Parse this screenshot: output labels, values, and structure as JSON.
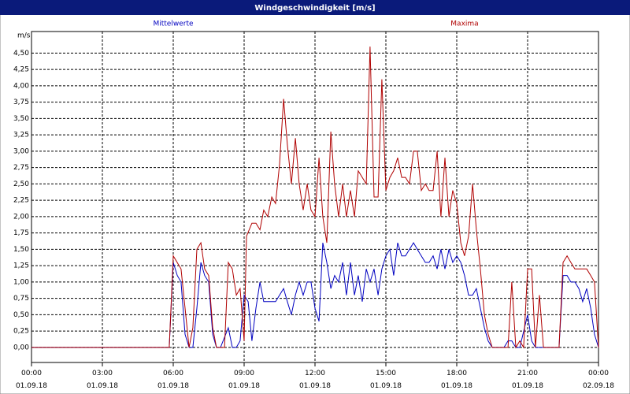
{
  "chart_data": {
    "type": "line",
    "title": "Windgeschwindigkeit [m/s]",
    "y_label": "m/s",
    "xlim": [
      0,
      24
    ],
    "ylim": [
      -0.23,
      4.83
    ],
    "grid": true,
    "xticks": [
      {
        "value": 0,
        "label": "00:00 01.09.18"
      },
      {
        "value": 3,
        "label": "03:00 01.09.18"
      },
      {
        "value": 6,
        "label": "06:00 01.09.18"
      },
      {
        "value": 9,
        "label": "09:00 01.09.18"
      },
      {
        "value": 12,
        "label": "12:00 01.09.18"
      },
      {
        "value": 15,
        "label": "15:00 01.09.18"
      },
      {
        "value": 18,
        "label": "18:00 01.09.18"
      },
      {
        "value": 21,
        "label": "21:00 01.09.18"
      },
      {
        "value": 24,
        "label": "00:00 02.09.18"
      }
    ],
    "yticks": [
      {
        "value": 0,
        "label": "0,00"
      },
      {
        "value": 0.25,
        "label": "0,25"
      },
      {
        "value": 0.5,
        "label": "0,50"
      },
      {
        "value": 0.75,
        "label": "0,75"
      },
      {
        "value": 1,
        "label": "1,00"
      },
      {
        "value": 1.25,
        "label": "1,25"
      },
      {
        "value": 1.5,
        "label": "1,50"
      },
      {
        "value": 1.75,
        "label": "1,75"
      },
      {
        "value": 2,
        "label": "2,00"
      },
      {
        "value": 2.25,
        "label": "2,25"
      },
      {
        "value": 2.5,
        "label": "2,50"
      },
      {
        "value": 2.75,
        "label": "2,75"
      },
      {
        "value": 3,
        "label": "3,00"
      },
      {
        "value": 3.25,
        "label": "3,25"
      },
      {
        "value": 3.5,
        "label": "3,50"
      },
      {
        "value": 3.75,
        "label": "3,75"
      },
      {
        "value": 4,
        "label": "4,00"
      },
      {
        "value": 4.25,
        "label": "4,25"
      },
      {
        "value": 4.5,
        "label": "4,50"
      }
    ],
    "series": [
      {
        "name": "Mittelwerte",
        "color": "#0000c0",
        "x": [
          0,
          5.83,
          6,
          6.17,
          6.33,
          6.5,
          6.67,
          6.83,
          7,
          7.17,
          7.33,
          7.5,
          7.67,
          7.83,
          8,
          8.33,
          8.5,
          8.67,
          8.83,
          9,
          9.17,
          9.33,
          9.5,
          9.67,
          9.83,
          10,
          10.33,
          10.5,
          10.67,
          10.83,
          11,
          11.17,
          11.33,
          11.5,
          11.67,
          11.83,
          12,
          12.17,
          12.33,
          12.5,
          12.67,
          12.83,
          13,
          13.17,
          13.33,
          13.5,
          13.67,
          13.83,
          14,
          14.17,
          14.33,
          14.5,
          14.67,
          14.83,
          15,
          15.17,
          15.33,
          15.5,
          15.67,
          15.83,
          16,
          16.17,
          16.33,
          16.5,
          16.67,
          16.83,
          17,
          17.17,
          17.33,
          17.5,
          17.67,
          17.83,
          18,
          18.17,
          18.33,
          18.5,
          18.67,
          18.83,
          19,
          19.17,
          19.33,
          19.5,
          20,
          20.17,
          20.33,
          20.5,
          20.67,
          21,
          21.17,
          21.33,
          22,
          22.33,
          22.5,
          22.67,
          22.83,
          23,
          23.17,
          23.33,
          23.5,
          23.67,
          23.83,
          24
        ],
        "values": [
          0,
          0,
          1.3,
          1.1,
          1,
          0.2,
          0,
          0,
          0.6,
          1.3,
          1.1,
          1,
          0.2,
          0,
          0,
          0.3,
          0,
          0,
          0.1,
          0.8,
          0.7,
          0.1,
          0.6,
          1,
          0.7,
          0.7,
          0.7,
          0.8,
          0.9,
          0.7,
          0.5,
          0.8,
          1,
          0.8,
          1,
          1,
          0.6,
          0.4,
          1.6,
          1.3,
          0.9,
          1.1,
          1,
          1.3,
          0.8,
          1.3,
          0.8,
          1.1,
          0.7,
          1.2,
          1,
          1.2,
          0.8,
          1.2,
          1.4,
          1.5,
          1.1,
          1.6,
          1.4,
          1.4,
          1.5,
          1.6,
          1.5,
          1.4,
          1.3,
          1.3,
          1.4,
          1.2,
          1.5,
          1.2,
          1.5,
          1.3,
          1.4,
          1.3,
          1.1,
          0.8,
          0.8,
          0.9,
          0.6,
          0.3,
          0.1,
          0,
          0,
          0.1,
          0.1,
          0,
          0,
          0.5,
          0.1,
          0,
          0,
          0,
          1.1,
          1.1,
          1,
          1,
          0.9,
          0.7,
          0.9,
          0.6,
          0.2,
          0
        ]
      },
      {
        "name": "Maxima",
        "color": "#b00000",
        "x": [
          0,
          5.83,
          6,
          6.33,
          6.5,
          6.67,
          6.83,
          7,
          7.17,
          7.33,
          7.5,
          7.67,
          7.83,
          8,
          8.17,
          8.33,
          8.5,
          8.67,
          8.83,
          9,
          9.1,
          9.33,
          9.5,
          9.67,
          9.83,
          10,
          10.17,
          10.33,
          10.5,
          10.67,
          10.83,
          11,
          11.17,
          11.33,
          11.5,
          11.67,
          11.83,
          12,
          12.17,
          12.33,
          12.5,
          12.67,
          12.83,
          13,
          13.17,
          13.33,
          13.5,
          13.67,
          13.83,
          14,
          14.17,
          14.33,
          14.5,
          14.67,
          14.83,
          15,
          15.17,
          15.33,
          15.5,
          15.67,
          15.83,
          16,
          16.17,
          16.33,
          16.5,
          16.67,
          16.83,
          17,
          17.17,
          17.33,
          17.5,
          17.67,
          17.83,
          18,
          18.17,
          18.33,
          18.5,
          18.67,
          18.83,
          19,
          19.17,
          19.33,
          19.5,
          20,
          20.17,
          20.33,
          20.5,
          20.67,
          20.83,
          21,
          21.17,
          21.33,
          21.5,
          21.67,
          22,
          22.33,
          22.5,
          22.67,
          22.83,
          23,
          23.33,
          23.5,
          23.67,
          23.83,
          24
        ],
        "values": [
          0,
          0,
          1.4,
          1.2,
          0.6,
          0,
          0.3,
          1.5,
          1.6,
          1.2,
          1.1,
          0.3,
          0,
          0,
          0,
          1.3,
          1.2,
          0.8,
          0.9,
          0.1,
          1.7,
          1.9,
          1.9,
          1.8,
          2.1,
          2,
          2.3,
          2.2,
          2.8,
          3.8,
          3.1,
          2.5,
          3.2,
          2.5,
          2.1,
          2.5,
          2.1,
          2,
          2.9,
          2,
          1.6,
          3.3,
          2.5,
          2,
          2.5,
          2,
          2.4,
          2,
          2.7,
          2.6,
          2.5,
          4.6,
          2.3,
          2.3,
          4.1,
          2.4,
          2.6,
          2.7,
          2.9,
          2.6,
          2.6,
          2.5,
          3,
          3,
          2.4,
          2.5,
          2.4,
          2.4,
          3,
          2,
          2.9,
          2,
          2.4,
          2.2,
          1.6,
          1.4,
          1.7,
          2.5,
          1.8,
          1.2,
          0.5,
          0.2,
          0,
          0,
          0,
          1,
          0,
          0.1,
          0,
          1.2,
          1.2,
          0,
          0.8,
          0,
          0,
          0,
          1.3,
          1.4,
          1.3,
          1.2,
          1.2,
          1.2,
          1.1,
          1,
          0
        ]
      }
    ]
  }
}
